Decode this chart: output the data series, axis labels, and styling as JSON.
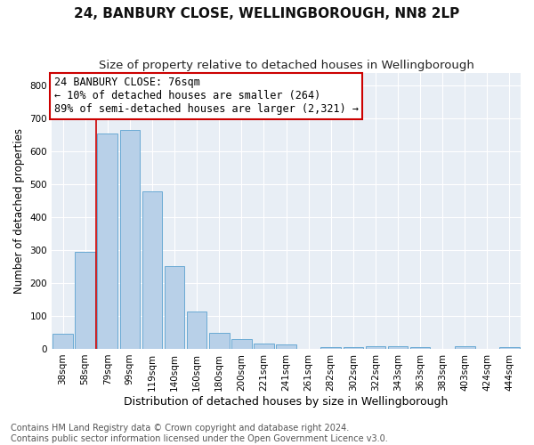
{
  "title": "24, BANBURY CLOSE, WELLINGBOROUGH, NN8 2LP",
  "subtitle": "Size of property relative to detached houses in Wellingborough",
  "xlabel": "Distribution of detached houses by size in Wellingborough",
  "ylabel": "Number of detached properties",
  "bar_labels": [
    "38sqm",
    "58sqm",
    "79sqm",
    "99sqm",
    "119sqm",
    "140sqm",
    "160sqm",
    "180sqm",
    "200sqm",
    "221sqm",
    "241sqm",
    "261sqm",
    "282sqm",
    "302sqm",
    "322sqm",
    "343sqm",
    "363sqm",
    "383sqm",
    "403sqm",
    "424sqm",
    "444sqm"
  ],
  "bar_heights": [
    47,
    294,
    655,
    665,
    478,
    252,
    113,
    49,
    29,
    15,
    13,
    1,
    4,
    4,
    9,
    8,
    4,
    0,
    7,
    0,
    6
  ],
  "bar_color": "#b8d0e8",
  "bar_edge_color": "#6aaad4",
  "ylim": [
    0,
    840
  ],
  "yticks": [
    0,
    100,
    200,
    300,
    400,
    500,
    600,
    700,
    800
  ],
  "vline_color": "#cc0000",
  "vline_x_index": 2,
  "annotation_line1": "24 BANBURY CLOSE: 76sqm",
  "annotation_line2": "← 10% of detached houses are smaller (264)",
  "annotation_line3": "89% of semi-detached houses are larger (2,321) →",
  "annotation_box_facecolor": "#ffffff",
  "annotation_box_edgecolor": "#cc0000",
  "footer_line1": "Contains HM Land Registry data © Crown copyright and database right 2024.",
  "footer_line2": "Contains public sector information licensed under the Open Government Licence v3.0.",
  "plot_bg_color": "#e8eef5",
  "fig_bg_color": "#ffffff",
  "grid_color": "#ffffff",
  "title_fontsize": 11,
  "subtitle_fontsize": 9.5,
  "ylabel_fontsize": 8.5,
  "xlabel_fontsize": 9,
  "tick_fontsize": 7.5,
  "annotation_fontsize": 8.5,
  "footer_fontsize": 7
}
